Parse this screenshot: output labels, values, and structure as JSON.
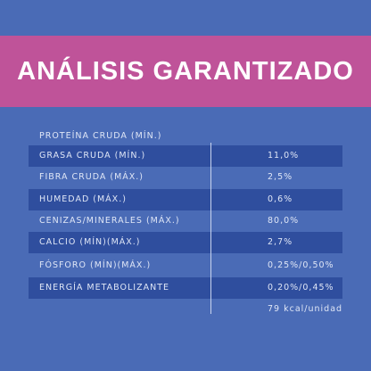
{
  "header": {
    "title": "ANÁLISIS GARANTIZADO"
  },
  "table": {
    "rows": [
      {
        "label": "PROTEÍNA CRUDA (MÍN.)"
      },
      {
        "label": "GRASA CRUDA (MÍN.)",
        "value": "11,0%"
      },
      {
        "label": "FIBRA CRUDA (MÁX.)",
        "value": "2,5%"
      },
      {
        "label": "HUMEDAD (MÁX.)",
        "value": "0,6%"
      },
      {
        "label": "CENIZAS/MINERALES (MÁX.)",
        "value": "80,0%"
      },
      {
        "label": "CALCIO (MÍN)(MÁX.)",
        "value": "2,7%"
      },
      {
        "label": "FÓSFORO (MÍN)(MÁX.)",
        "value": "0,25%/0,50%"
      },
      {
        "label": "ENERGÍA METABOLIZANTE",
        "value": "0,20%/0,45%"
      },
      {
        "value": "79 kcal/unidad"
      }
    ]
  }
}
